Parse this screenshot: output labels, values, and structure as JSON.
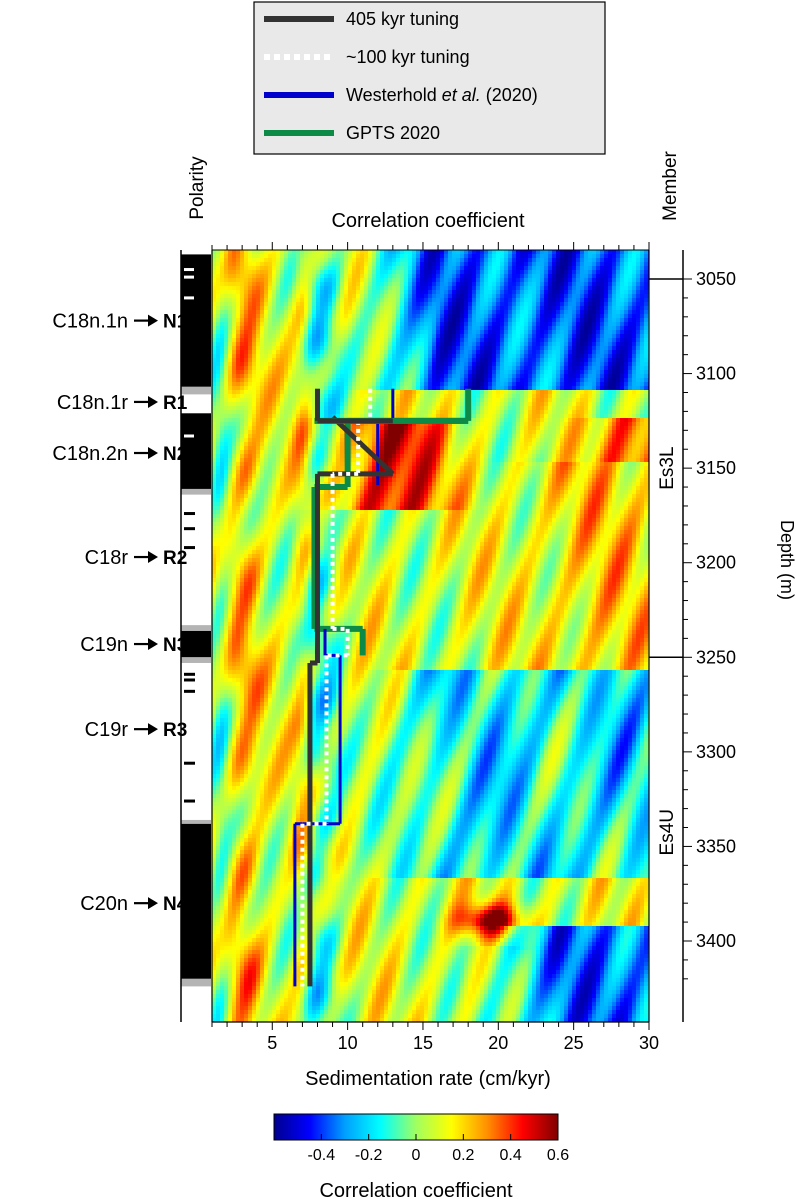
{
  "chart_data": {
    "type": "heatmap",
    "title": "Correlation coefficient",
    "xlabel": "Sedimentation rate (cm/kyr)",
    "ylabel": "Depth (m)",
    "xlim": [
      1,
      30
    ],
    "ylim": [
      3435,
      3037
    ],
    "x_ticks": [
      "5",
      "10",
      "15",
      "20",
      "25",
      "30"
    ],
    "y_ticks": [
      "3050",
      "3100",
      "3150",
      "3200",
      "3250",
      "3300",
      "3350",
      "3400"
    ],
    "colorbar": {
      "label": "Correlation coefficient",
      "range": [
        -0.6,
        0.6
      ],
      "ticks": [
        "-0.4",
        "-0.2",
        "0",
        "0.2",
        "0.4",
        "0.6"
      ],
      "colormap": [
        "#00008f",
        "#0000ff",
        "#00a0ff",
        "#00ffff",
        "#a0ff60",
        "#ffff00",
        "#ff9000",
        "#ff0000",
        "#800000"
      ]
    },
    "legend": {
      "placement": "top-center",
      "entries": [
        {
          "label": "405 kyr tuning",
          "color": "#333333",
          "style": "solid"
        },
        {
          "label": "~100 kyr tuning",
          "color": "#ffffff",
          "style": "dotted"
        },
        {
          "label_parts": [
            "Westerhold ",
            "et al.",
            " (2020)"
          ],
          "color": "#0000cc",
          "style": "solid"
        },
        {
          "label": "GPTS 2020",
          "color": "#0d8a45",
          "style": "solid"
        }
      ]
    },
    "polarity": {
      "title": "Polarity",
      "zones": [
        {
          "chron": "C18n.1n",
          "zone": "N1",
          "label_depth": 3072
        },
        {
          "chron": "C18n.1r",
          "zone": "R1",
          "label_depth": 3115
        },
        {
          "chron": "C18n.2n",
          "zone": "N2",
          "label_depth": 3142
        },
        {
          "chron": "C18r",
          "zone": "R2",
          "label_depth": 3197
        },
        {
          "chron": "C19n",
          "zone": "N3",
          "label_depth": 3243
        },
        {
          "chron": "C19r",
          "zone": "R3",
          "label_depth": 3288
        },
        {
          "chron": "C20n",
          "zone": "N4",
          "label_depth": 3380
        }
      ],
      "normal_intervals": [
        [
          3037,
          3107
        ],
        [
          3121,
          3161
        ],
        [
          3236,
          3250
        ],
        [
          3338,
          3420
        ]
      ],
      "transition_intervals": [
        [
          3107,
          3111
        ],
        [
          3161,
          3164
        ],
        [
          3233,
          3236
        ],
        [
          3250,
          3253
        ],
        [
          3336,
          3338
        ],
        [
          3420,
          3424
        ]
      ],
      "thin_reversed_in_normal": [
        3045,
        3049,
        3060,
        3133
      ],
      "thin_normal_in_reversed": [
        3174,
        3182,
        3192,
        3259,
        3262,
        3268,
        3306,
        3326
      ]
    },
    "members": {
      "title": "Member",
      "units": [
        {
          "name": "Es3L",
          "top": 3050,
          "bottom": 3250
        },
        {
          "name": "Es4U",
          "top": 3250,
          "bottom": 3435
        }
      ]
    },
    "series": [
      {
        "name": "405 kyr tuning",
        "color": "#333333",
        "bars": [
          [
            3123,
            3153,
            9,
            13
          ],
          [
            3153,
            3253,
            8,
            8
          ],
          [
            3253,
            3424,
            7.5,
            7.5
          ]
        ]
      },
      {
        "name": "~100 kyr tuning",
        "color": "#ffffff",
        "bars": [
          [
            3108,
            3125,
            11.5,
            11.5
          ],
          [
            3125,
            3153,
            10.7,
            10.7
          ],
          [
            3153,
            3235,
            9,
            9
          ],
          [
            3235,
            3249,
            10,
            10
          ],
          [
            3249,
            3338,
            8.6,
            8.6
          ],
          [
            3338,
            3424,
            7,
            7
          ]
        ]
      },
      {
        "name": "Westerhold et al. (2020)",
        "color": "#0000cc",
        "bars": [
          [
            3108,
            3125,
            13,
            13
          ],
          [
            3125,
            3159,
            12,
            12
          ],
          [
            3235,
            3249,
            8.5,
            8.5
          ],
          [
            3249,
            3338,
            9.5,
            9.5
          ],
          [
            3338,
            3424,
            6.5,
            6.5
          ]
        ]
      },
      {
        "name": "GPTS 2020",
        "color": "#0d8a45",
        "bars": [
          [
            3108,
            3125,
            18,
            18
          ],
          [
            3125,
            3160,
            10,
            10
          ],
          [
            3160,
            3235,
            7.8,
            7.8
          ],
          [
            3235,
            3249,
            11,
            11
          ]
        ]
      }
    ]
  }
}
